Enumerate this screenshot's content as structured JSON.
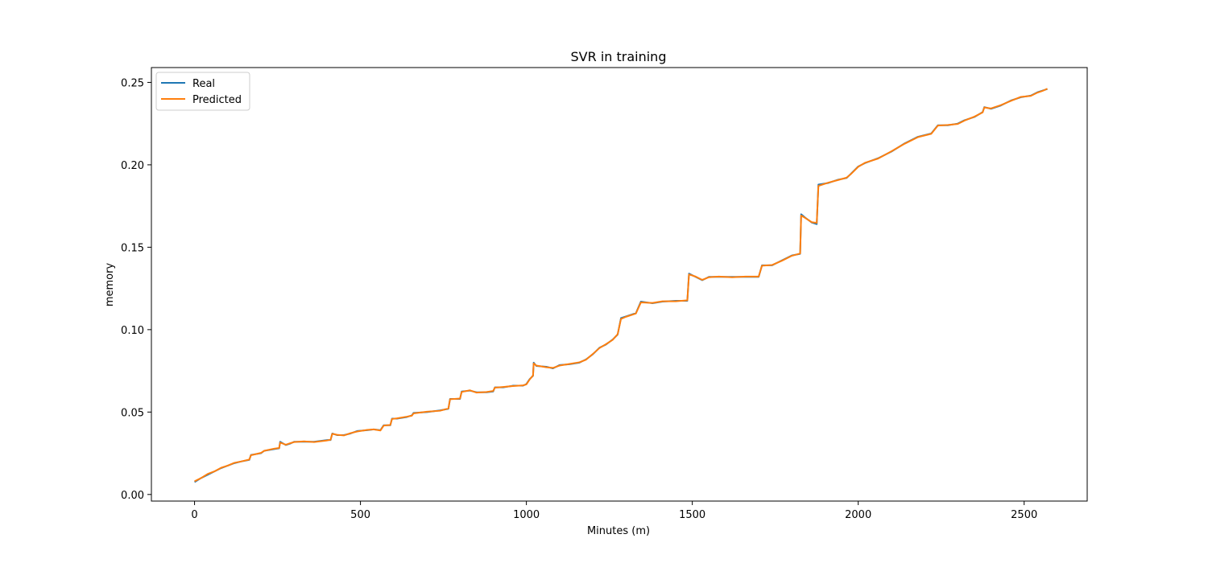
{
  "chart_data": {
    "type": "line",
    "title": "SVR in training",
    "xlabel": "Minutes (m)",
    "ylabel": "memory",
    "xlim": [
      -130,
      2690
    ],
    "ylim": [
      -0.004,
      0.259
    ],
    "xticks": [
      0,
      500,
      1000,
      1500,
      2000,
      2500
    ],
    "yticks": [
      0.0,
      0.05,
      0.1,
      0.15,
      0.2,
      0.25
    ],
    "xtick_labels": [
      "0",
      "500",
      "1000",
      "1500",
      "2000",
      "2500"
    ],
    "ytick_labels": [
      "0.00",
      "0.05",
      "0.10",
      "0.15",
      "0.20",
      "0.25"
    ],
    "grid": false,
    "legend_position": "top-left",
    "series": [
      {
        "name": "Real",
        "color": "#1f77b4",
        "points": [
          [
            0,
            0.0075
          ],
          [
            20,
            0.01
          ],
          [
            40,
            0.012
          ],
          [
            60,
            0.014
          ],
          [
            80,
            0.016
          ],
          [
            100,
            0.0175
          ],
          [
            120,
            0.019
          ],
          [
            140,
            0.02
          ],
          [
            165,
            0.021
          ],
          [
            170,
            0.024
          ],
          [
            200,
            0.025
          ],
          [
            210,
            0.0265
          ],
          [
            240,
            0.0275
          ],
          [
            255,
            0.028
          ],
          [
            258,
            0.032
          ],
          [
            275,
            0.03
          ],
          [
            290,
            0.031
          ],
          [
            300,
            0.032
          ],
          [
            330,
            0.032
          ],
          [
            360,
            0.032
          ],
          [
            400,
            0.033
          ],
          [
            410,
            0.033
          ],
          [
            415,
            0.037
          ],
          [
            430,
            0.036
          ],
          [
            450,
            0.036
          ],
          [
            470,
            0.037
          ],
          [
            490,
            0.0385
          ],
          [
            520,
            0.039
          ],
          [
            540,
            0.0395
          ],
          [
            560,
            0.039
          ],
          [
            570,
            0.042
          ],
          [
            590,
            0.042
          ],
          [
            595,
            0.046
          ],
          [
            610,
            0.046
          ],
          [
            640,
            0.047
          ],
          [
            655,
            0.048
          ],
          [
            660,
            0.0495
          ],
          [
            700,
            0.05
          ],
          [
            740,
            0.051
          ],
          [
            765,
            0.052
          ],
          [
            770,
            0.058
          ],
          [
            800,
            0.058
          ],
          [
            805,
            0.0625
          ],
          [
            830,
            0.063
          ],
          [
            850,
            0.062
          ],
          [
            880,
            0.062
          ],
          [
            900,
            0.0625
          ],
          [
            905,
            0.065
          ],
          [
            930,
            0.065
          ],
          [
            960,
            0.066
          ],
          [
            990,
            0.066
          ],
          [
            1000,
            0.067
          ],
          [
            1010,
            0.07
          ],
          [
            1020,
            0.072
          ],
          [
            1022,
            0.08
          ],
          [
            1030,
            0.078
          ],
          [
            1060,
            0.0775
          ],
          [
            1080,
            0.0765
          ],
          [
            1100,
            0.0785
          ],
          [
            1130,
            0.079
          ],
          [
            1160,
            0.08
          ],
          [
            1180,
            0.082
          ],
          [
            1200,
            0.085
          ],
          [
            1220,
            0.089
          ],
          [
            1240,
            0.091
          ],
          [
            1260,
            0.094
          ],
          [
            1275,
            0.097
          ],
          [
            1285,
            0.107
          ],
          [
            1300,
            0.108
          ],
          [
            1330,
            0.11
          ],
          [
            1345,
            0.117
          ],
          [
            1380,
            0.116
          ],
          [
            1410,
            0.117
          ],
          [
            1450,
            0.1175
          ],
          [
            1485,
            0.1175
          ],
          [
            1490,
            0.134
          ],
          [
            1510,
            0.132
          ],
          [
            1530,
            0.13
          ],
          [
            1550,
            0.132
          ],
          [
            1580,
            0.132
          ],
          [
            1620,
            0.132
          ],
          [
            1660,
            0.132
          ],
          [
            1700,
            0.132
          ],
          [
            1710,
            0.139
          ],
          [
            1740,
            0.139
          ],
          [
            1770,
            0.142
          ],
          [
            1800,
            0.145
          ],
          [
            1825,
            0.146
          ],
          [
            1828,
            0.17
          ],
          [
            1840,
            0.168
          ],
          [
            1860,
            0.165
          ],
          [
            1875,
            0.164
          ],
          [
            1880,
            0.188
          ],
          [
            1910,
            0.189
          ],
          [
            1940,
            0.191
          ],
          [
            1965,
            0.192
          ],
          [
            1980,
            0.195
          ],
          [
            2000,
            0.199
          ],
          [
            2020,
            0.201
          ],
          [
            2060,
            0.204
          ],
          [
            2100,
            0.208
          ],
          [
            2140,
            0.213
          ],
          [
            2180,
            0.217
          ],
          [
            2220,
            0.219
          ],
          [
            2240,
            0.224
          ],
          [
            2270,
            0.224
          ],
          [
            2300,
            0.225
          ],
          [
            2320,
            0.227
          ],
          [
            2350,
            0.229
          ],
          [
            2375,
            0.232
          ],
          [
            2380,
            0.235
          ],
          [
            2400,
            0.234
          ],
          [
            2430,
            0.236
          ],
          [
            2460,
            0.239
          ],
          [
            2490,
            0.241
          ],
          [
            2520,
            0.242
          ],
          [
            2540,
            0.244
          ],
          [
            2555,
            0.245
          ],
          [
            2570,
            0.246
          ]
        ]
      },
      {
        "name": "Predicted",
        "color": "#ff7f0e",
        "points": [
          [
            0,
            0.008
          ],
          [
            20,
            0.01
          ],
          [
            40,
            0.0125
          ],
          [
            60,
            0.014
          ],
          [
            80,
            0.0162
          ],
          [
            100,
            0.0175
          ],
          [
            120,
            0.0192
          ],
          [
            140,
            0.02
          ],
          [
            165,
            0.0212
          ],
          [
            170,
            0.0238
          ],
          [
            200,
            0.0252
          ],
          [
            210,
            0.0265
          ],
          [
            240,
            0.0278
          ],
          [
            255,
            0.0282
          ],
          [
            258,
            0.0315
          ],
          [
            275,
            0.0302
          ],
          [
            290,
            0.0312
          ],
          [
            300,
            0.0318
          ],
          [
            330,
            0.0322
          ],
          [
            360,
            0.0318
          ],
          [
            400,
            0.0328
          ],
          [
            410,
            0.0332
          ],
          [
            415,
            0.0368
          ],
          [
            430,
            0.0362
          ],
          [
            450,
            0.0358
          ],
          [
            470,
            0.0372
          ],
          [
            490,
            0.0382
          ],
          [
            520,
            0.0392
          ],
          [
            540,
            0.0395
          ],
          [
            560,
            0.0388
          ],
          [
            570,
            0.0418
          ],
          [
            590,
            0.0422
          ],
          [
            595,
            0.0458
          ],
          [
            610,
            0.0462
          ],
          [
            640,
            0.0472
          ],
          [
            655,
            0.0478
          ],
          [
            660,
            0.0492
          ],
          [
            700,
            0.0502
          ],
          [
            740,
            0.0508
          ],
          [
            765,
            0.0522
          ],
          [
            770,
            0.0578
          ],
          [
            800,
            0.0582
          ],
          [
            805,
            0.0622
          ],
          [
            830,
            0.0632
          ],
          [
            850,
            0.0618
          ],
          [
            880,
            0.0622
          ],
          [
            900,
            0.0628
          ],
          [
            905,
            0.0648
          ],
          [
            930,
            0.0652
          ],
          [
            960,
            0.0658
          ],
          [
            990,
            0.0662
          ],
          [
            1000,
            0.0668
          ],
          [
            1010,
            0.0698
          ],
          [
            1020,
            0.0722
          ],
          [
            1022,
            0.0795
          ],
          [
            1030,
            0.0782
          ],
          [
            1060,
            0.0772
          ],
          [
            1080,
            0.0768
          ],
          [
            1100,
            0.0782
          ],
          [
            1130,
            0.0792
          ],
          [
            1160,
            0.0802
          ],
          [
            1180,
            0.0818
          ],
          [
            1200,
            0.0852
          ],
          [
            1220,
            0.0888
          ],
          [
            1240,
            0.0912
          ],
          [
            1260,
            0.0938
          ],
          [
            1275,
            0.0972
          ],
          [
            1285,
            0.1065
          ],
          [
            1300,
            0.1078
          ],
          [
            1330,
            0.1098
          ],
          [
            1345,
            0.1165
          ],
          [
            1380,
            0.1162
          ],
          [
            1410,
            0.1172
          ],
          [
            1450,
            0.1172
          ],
          [
            1485,
            0.1178
          ],
          [
            1490,
            0.1335
          ],
          [
            1510,
            0.1322
          ],
          [
            1530,
            0.1302
          ],
          [
            1550,
            0.1318
          ],
          [
            1580,
            0.1322
          ],
          [
            1620,
            0.1318
          ],
          [
            1660,
            0.1322
          ],
          [
            1700,
            0.1322
          ],
          [
            1710,
            0.1388
          ],
          [
            1740,
            0.1392
          ],
          [
            1770,
            0.1418
          ],
          [
            1800,
            0.1448
          ],
          [
            1825,
            0.1462
          ],
          [
            1828,
            0.1692
          ],
          [
            1840,
            0.1678
          ],
          [
            1860,
            0.1652
          ],
          [
            1875,
            0.1648
          ],
          [
            1880,
            0.1872
          ],
          [
            1910,
            0.1892
          ],
          [
            1940,
            0.1908
          ],
          [
            1965,
            0.1922
          ],
          [
            1980,
            0.1948
          ],
          [
            2000,
            0.1988
          ],
          [
            2020,
            0.2012
          ],
          [
            2060,
            0.2038
          ],
          [
            2100,
            0.2082
          ],
          [
            2140,
            0.2128
          ],
          [
            2180,
            0.2168
          ],
          [
            2220,
            0.2188
          ],
          [
            2240,
            0.2238
          ],
          [
            2270,
            0.2242
          ],
          [
            2300,
            0.2248
          ],
          [
            2320,
            0.2268
          ],
          [
            2350,
            0.2292
          ],
          [
            2375,
            0.2318
          ],
          [
            2380,
            0.2348
          ],
          [
            2400,
            0.2342
          ],
          [
            2430,
            0.2362
          ],
          [
            2460,
            0.2388
          ],
          [
            2490,
            0.2412
          ],
          [
            2520,
            0.2418
          ],
          [
            2540,
            0.2438
          ],
          [
            2555,
            0.2448
          ],
          [
            2570,
            0.2462
          ]
        ]
      }
    ]
  }
}
